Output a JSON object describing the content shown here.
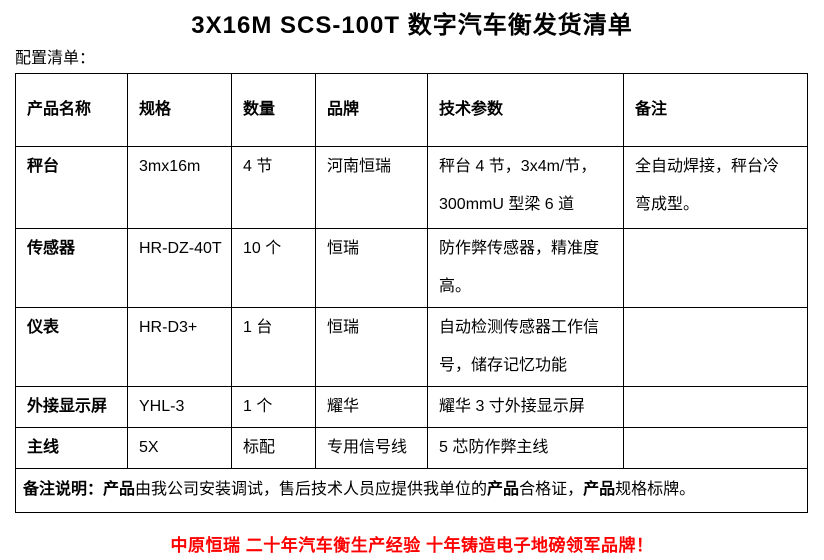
{
  "page": {
    "title": "3X16M SCS-100T 数字汽车衡发货清单",
    "section_label": "配置清单：",
    "footer_slogan": "中原恒瑞 二十年汽车衡生产经验 十年铸造电子地磅领军品牌！"
  },
  "colors": {
    "text": "#000000",
    "table_border": "#000000",
    "slogan_red": "#ff0000"
  },
  "table": {
    "headers": [
      "产品名称",
      "规格",
      "数量",
      "品牌",
      "技术参数",
      "备注"
    ],
    "rows": [
      {
        "cells": [
          "秤台",
          "3mx16m",
          "4 节",
          "河南恒瑞",
          "秤台 4 节，3x4m/节，\n300mmU 型梁 6 道",
          "全自动焊接，秤台冷\n弯成型。"
        ]
      },
      {
        "cells": [
          "传感器",
          "HR-DZ-40T",
          "10 个",
          "恒瑞",
          "防作弊传感器，精准度\n高。",
          ""
        ]
      },
      {
        "cells": [
          "仪表",
          "HR-D3+",
          "1 台",
          "恒瑞",
          "自动检测传感器工作信\n号，储存记忆功能",
          ""
        ]
      },
      {
        "cells": [
          "外接显示屏",
          "YHL-3",
          "1 个",
          "耀华",
          "耀华 3 寸外接显示屏",
          ""
        ]
      },
      {
        "cells": [
          "主线",
          "5X",
          "标配",
          "专用信号线",
          "5 芯防作弊主线",
          ""
        ]
      }
    ],
    "remark": {
      "segments": [
        {
          "text": "备注说明：",
          "bold": true
        },
        {
          "text": "产品",
          "bold": true
        },
        {
          "text": "由我公司安装调试，售后技术人员应提供我单位的",
          "bold": false
        },
        {
          "text": "产品",
          "bold": true
        },
        {
          "text": "合格证，",
          "bold": false
        },
        {
          "text": "产品",
          "bold": true
        },
        {
          "text": "规格标牌。",
          "bold": false
        }
      ]
    }
  }
}
